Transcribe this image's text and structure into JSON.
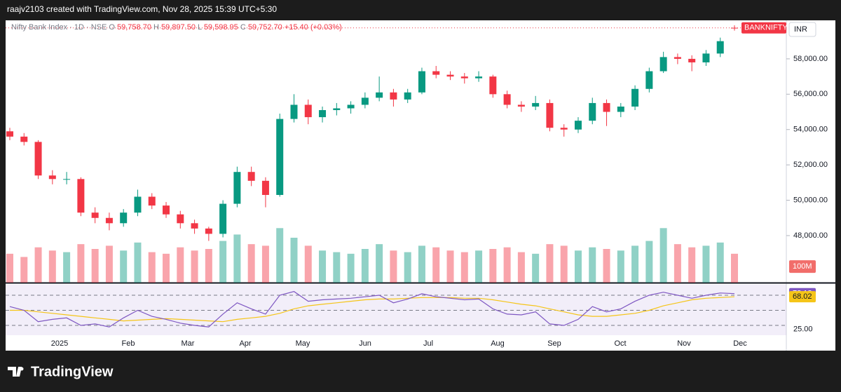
{
  "header": {
    "text": "raajv2103 created with TradingView.com, Nov 28, 2025 15:39 UTC+5:30"
  },
  "brand": "TradingView",
  "chart_data": {
    "type": "candlestick",
    "symbol": "Nifty Bank Index · 1D · NSE",
    "ohlc_legend": [
      {
        "key": "O",
        "value": "59,758.70"
      },
      {
        "key": "H",
        "value": "59,897.50"
      },
      {
        "key": "L",
        "value": "59,598.95"
      },
      {
        "key": "C",
        "value": "59,752.70"
      }
    ],
    "change": "+15.40 (+0.03%)",
    "price_label": "BANKNIFTY",
    "currency": "INR",
    "up_color": "#089981",
    "down_color": "#f23645",
    "open": [
      53900,
      53600,
      53300,
      51400,
      51200,
      51200,
      49300,
      49000,
      48700,
      49300,
      50200,
      49700,
      49200,
      48700,
      48400,
      48100,
      49800,
      51600,
      51100,
      50300,
      54600,
      55400,
      54700,
      55100,
      55200,
      55400,
      55800,
      56100,
      55700,
      56100,
      57300,
      57100,
      57000,
      56900,
      57000,
      56000,
      55400,
      55300,
      55500,
      54100,
      54000,
      54500,
      55500,
      55000,
      55300,
      56300,
      57300,
      58100,
      58000,
      57800,
      58300,
      59758.7
    ],
    "high": [
      54100,
      53800,
      53400,
      51700,
      51600,
      51300,
      49600,
      49300,
      49500,
      50600,
      50400,
      49900,
      49400,
      48900,
      48500,
      50000,
      51900,
      51900,
      51300,
      54900,
      56000,
      55700,
      55300,
      55500,
      55600,
      56100,
      57000,
      56300,
      56300,
      57500,
      57600,
      57300,
      57200,
      57300,
      57100,
      56200,
      55600,
      55900,
      55700,
      54300,
      54700,
      55800,
      55700,
      55500,
      56500,
      57500,
      58400,
      58300,
      58200,
      58500,
      59200,
      59897.5
    ],
    "low": [
      53400,
      53100,
      51200,
      50900,
      50900,
      49100,
      48700,
      48300,
      48500,
      49100,
      49500,
      49000,
      48400,
      48100,
      47700,
      47900,
      49600,
      50800,
      49600,
      50200,
      54400,
      54300,
      54400,
      54800,
      54900,
      55200,
      55600,
      55300,
      55500,
      56000,
      56900,
      56800,
      56600,
      56700,
      55800,
      55200,
      55000,
      55100,
      53900,
      53600,
      53800,
      54300,
      54200,
      54700,
      55100,
      56100,
      57200,
      57700,
      57300,
      57600,
      58100,
      59598.95
    ],
    "close": [
      53600,
      53300,
      51400,
      51200,
      51200,
      49300,
      49000,
      48700,
      49300,
      50200,
      49700,
      49200,
      48700,
      48400,
      48100,
      49800,
      51600,
      51100,
      50300,
      54600,
      55400,
      54700,
      55100,
      55200,
      55400,
      55800,
      56100,
      55700,
      56100,
      57300,
      57100,
      57000,
      56900,
      57000,
      56000,
      55400,
      55300,
      55500,
      54100,
      54000,
      54500,
      55500,
      55000,
      55300,
      56300,
      57300,
      58100,
      58000,
      57800,
      58300,
      59000,
      59752.7
    ],
    "ylim": [
      45340,
      60020
    ],
    "yticks": [
      {
        "value": 48000,
        "label": "48,000.00"
      },
      {
        "value": 50000,
        "label": "50,000.00"
      },
      {
        "value": 52000,
        "label": "52,000.00"
      },
      {
        "value": 54000,
        "label": "54,000.00"
      },
      {
        "value": 56000,
        "label": "56,000.00"
      },
      {
        "value": 58000,
        "label": "58,000.00"
      }
    ],
    "xticks": [
      "2025",
      "Feb",
      "Mar",
      "Apr",
      "May",
      "Jun",
      "Jul",
      "Aug",
      "Sep",
      "Oct",
      "Nov",
      "Dec"
    ],
    "volume": {
      "values": [
        180000000,
        160000000,
        220000000,
        200000000,
        190000000,
        240000000,
        210000000,
        230000000,
        200000000,
        250000000,
        190000000,
        180000000,
        220000000,
        200000000,
        210000000,
        260000000,
        300000000,
        240000000,
        230000000,
        340000000,
        280000000,
        230000000,
        200000000,
        190000000,
        180000000,
        210000000,
        240000000,
        200000000,
        190000000,
        230000000,
        220000000,
        200000000,
        190000000,
        200000000,
        210000000,
        220000000,
        190000000,
        180000000,
        240000000,
        230000000,
        200000000,
        220000000,
        210000000,
        200000000,
        230000000,
        260000000,
        340000000,
        240000000,
        220000000,
        230000000,
        250000000,
        180000000
      ],
      "ylim": [
        0,
        350000000
      ],
      "yticks": [
        {
          "value": 100000000,
          "label": "100M"
        }
      ]
    },
    "rsi": {
      "values": [
        55,
        50,
        35,
        38,
        40,
        30,
        32,
        28,
        40,
        50,
        42,
        38,
        33,
        30,
        28,
        45,
        60,
        52,
        45,
        70,
        75,
        62,
        64,
        65,
        66,
        68,
        70,
        60,
        65,
        72,
        68,
        66,
        64,
        65,
        52,
        45,
        44,
        48,
        32,
        30,
        38,
        55,
        48,
        52,
        62,
        70,
        74,
        70,
        66,
        70,
        73,
        72.18
      ],
      "ma": [
        50,
        50,
        48,
        46,
        44,
        42,
        40,
        38,
        36,
        37,
        38,
        39,
        38,
        37,
        36,
        35,
        38,
        40,
        42,
        46,
        52,
        56,
        58,
        60,
        62,
        64,
        65,
        65,
        66,
        67,
        67,
        67,
        66,
        66,
        64,
        61,
        58,
        56,
        52,
        48,
        44,
        42,
        42,
        44,
        46,
        50,
        56,
        60,
        64,
        66,
        67,
        68.02
      ],
      "color": "#7e57c2",
      "ma_color": "#f5c518",
      "ylim": [
        17,
        84
      ],
      "levels": [
        70,
        50,
        30
      ],
      "yticks": [
        {
          "value": 25,
          "label": "25.00"
        }
      ]
    }
  }
}
